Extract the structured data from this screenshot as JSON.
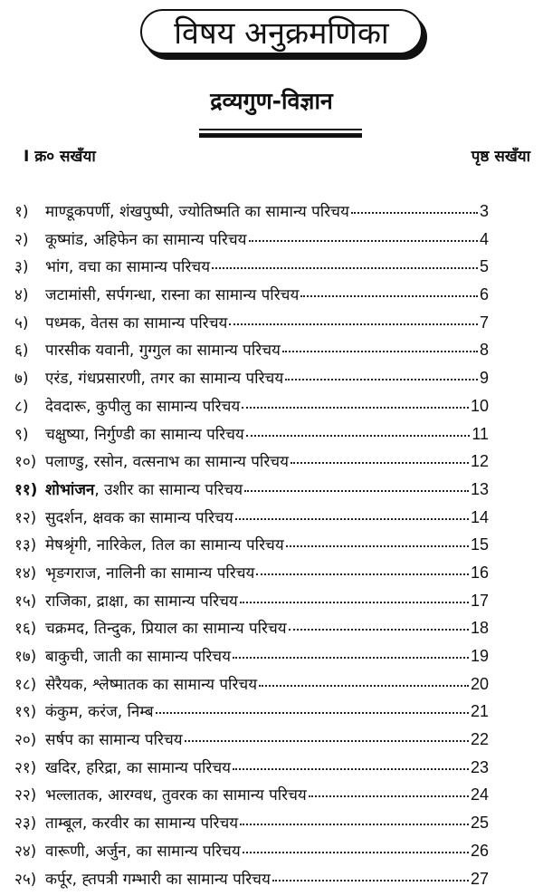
{
  "title": "विषय अनुक्रमणिका",
  "subtitle": "द्रव्यगुण-विज्ञान",
  "header": {
    "left": "I क्र० सखँया",
    "right": "पृष्ठ सखँया"
  },
  "entries": [
    {
      "num": "१)",
      "text": "माण्डूकपर्णी, शंखपुष्पी, ज्योतिष्मति का सामान्य परिचय",
      "page": "3"
    },
    {
      "num": "२)",
      "text": "कूष्मांड, अहिफेन का सामान्य परिचय",
      "page": "4"
    },
    {
      "num": "३)",
      "text": "भांग, वचा का सामान्य परिचय",
      "page": "5"
    },
    {
      "num": "४)",
      "text": "जटामांसी, सर्पगन्धा, रास्ना का सामान्य परिचय",
      "page": "6"
    },
    {
      "num": "५)",
      "text": "पध्मक, वेतस का सामान्य परिचय",
      "page": "7"
    },
    {
      "num": "६)",
      "text": "पारसीक यवानी, गुग्गुल का सामान्य परिचय",
      "page": "8"
    },
    {
      "num": "७)",
      "text": "एरंड, गंधप्रसारणी, तगर का सामान्य परिचय",
      "page": "9"
    },
    {
      "num": "८)",
      "text": "देवदारू, कुपीलु का सामान्य परिचय",
      "page": "10"
    },
    {
      "num": "९)",
      "text": "चक्षुष्या, निर्गुण्डी का सामान्य परिचय",
      "page": "11"
    },
    {
      "num": "१०)",
      "text": "पलाण्डु, रसोन, वत्सनाभ का सामान्य परिचय",
      "page": "12"
    },
    {
      "num": "११)",
      "first": "शोभांजन",
      "text": ", उशीर का सामान्य परिचय",
      "page": "13",
      "bold": true
    },
    {
      "num": "१२)",
      "text": "सुदर्शन, क्षवक का सामान्य परिचय",
      "page": "14"
    },
    {
      "num": "१३)",
      "text": "मेषश्रृंगी, नारिकेल, तिल का सामान्य परिचय",
      "page": "15"
    },
    {
      "num": "१४)",
      "text": "भृङगराज, नालिनी का सामान्य परिचय",
      "page": "16"
    },
    {
      "num": "१५)",
      "text": "राजिका, द्राक्षा,  का सामान्य परिचय",
      "page": "17"
    },
    {
      "num": "१६)",
      "text": "चक्रमद, तिन्दुक, प्रियाल का सामान्य परिचय",
      "page": "18"
    },
    {
      "num": "१७)",
      "text": "बाकुची, जाती का सामान्य परिचय",
      "page": "19"
    },
    {
      "num": "१८)",
      "text": "सेरैयक, श्लेष्मातक  का सामान्य परिचय",
      "page": "20"
    },
    {
      "num": "१९)",
      "text": "कंकुम, करंज, निम्ब",
      "page": "21"
    },
    {
      "num": "२०)",
      "text": "सर्षप का सामान्य परिचय",
      "page": "22"
    },
    {
      "num": "२१)",
      "text": "खदिर, हरिद्रा, का सामान्य परिचय",
      "page": "23"
    },
    {
      "num": "२२)",
      "text": "भल्लातक, आरग्वध, तुवरक का सामान्य परिचय",
      "page": "24"
    },
    {
      "num": "२३)",
      "text": "ताम्बूल, करवीर का सामान्य परिचय",
      "page": "25"
    },
    {
      "num": "२४)",
      "text": "वारूणी, अर्जुन,  का सामान्य परिचय",
      "page": "26"
    },
    {
      "num": "२५)",
      "text": "कर्पूर, ह्तपत्री गम्भारी का सामान्य परिचय",
      "page": "27"
    }
  ]
}
